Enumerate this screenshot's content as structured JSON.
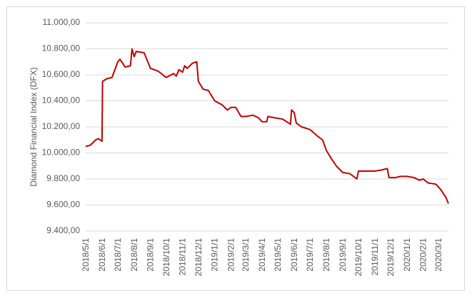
{
  "chart_data": {
    "type": "line",
    "y_label": "Diamond Financial Index (DFX)",
    "x": [
      "2018/5/1",
      "2018/5/10",
      "2018/5/20",
      "2018/5/25",
      "2018/6/1",
      "2018/6/2",
      "2018/6/10",
      "2018/6/20",
      "2018/7/1",
      "2018/7/5",
      "2018/7/15",
      "2018/7/25",
      "2018/7/28",
      "2018/8/1",
      "2018/8/5",
      "2018/8/20",
      "2018/8/25",
      "2018/9/1",
      "2018/9/15",
      "2018/10/1",
      "2018/10/15",
      "2018/10/20",
      "2018/10/25",
      "2018/11/1",
      "2018/11/5",
      "2018/11/10",
      "2018/11/20",
      "2018/11/28",
      "2018/12/1",
      "2018/12/10",
      "2018/12/20",
      "2019/1/1",
      "2019/1/15",
      "2019/1/25",
      "2019/2/1",
      "2019/2/10",
      "2019/2/20",
      "2019/3/1",
      "2019/3/15",
      "2019/3/25",
      "2019/4/1",
      "2019/4/10",
      "2019/4/12",
      "2019/4/25",
      "2019/5/10",
      "2019/5/25",
      "2019/5/27",
      "2019/6/1",
      "2019/6/5",
      "2019/6/15",
      "2019/7/1",
      "2019/7/15",
      "2019/7/25",
      "2019/8/1",
      "2019/8/10",
      "2019/8/20",
      "2019/9/1",
      "2019/9/15",
      "2019/9/28",
      "2019/10/1",
      "2019/10/15",
      "2019/11/1",
      "2019/11/15",
      "2019/11/25",
      "2019/11/28",
      "2019/12/10",
      "2019/12/20",
      "2020/1/1",
      "2020/1/15",
      "2020/1/25",
      "2020/2/1",
      "2020/2/10",
      "2020/2/25",
      "2020/3/5",
      "2020/3/15",
      "2020/3/20"
    ],
    "values": [
      10050,
      10060,
      10100,
      10110,
      10090,
      10550,
      10570,
      10580,
      10700,
      10720,
      10660,
      10670,
      10800,
      10740,
      10780,
      10770,
      10720,
      10650,
      10630,
      10580,
      10610,
      10590,
      10640,
      10620,
      10670,
      10650,
      10690,
      10700,
      10550,
      10490,
      10480,
      10400,
      10370,
      10330,
      10350,
      10350,
      10280,
      10280,
      10290,
      10270,
      10240,
      10240,
      10280,
      10270,
      10260,
      10220,
      10330,
      10310,
      10230,
      10200,
      10180,
      10130,
      10100,
      10020,
      9960,
      9900,
      9850,
      9840,
      9800,
      9860,
      9860,
      9860,
      9870,
      9880,
      9810,
      9810,
      9820,
      9820,
      9810,
      9790,
      9800,
      9770,
      9760,
      9720,
      9660,
      9610
    ],
    "color": "#c00000",
    "xlim": [
      "2018/5/1",
      "2020/3/20"
    ],
    "xticks": [
      "2018/5/1",
      "2018/6/1",
      "2018/7/1",
      "2018/8/1",
      "2018/9/1",
      "2018/10/1",
      "2018/11/1",
      "2018/12/1",
      "2019/1/1",
      "2019/2/1",
      "2019/3/1",
      "2019/4/1",
      "2019/5/1",
      "2019/6/1",
      "2019/7/1",
      "2019/8/1",
      "2019/9/1",
      "2019/10/1",
      "2019/11/1",
      "2019/12/1",
      "2020/1/1",
      "2020/2/1",
      "2020/3/1"
    ],
    "ylim": [
      9400,
      11000
    ],
    "yticks": [
      {
        "value": 9400,
        "label": "9.400,00"
      },
      {
        "value": 9600,
        "label": "9.600,00"
      },
      {
        "value": 9800,
        "label": "9.800,00"
      },
      {
        "value": 10000,
        "label": "10.000,00"
      },
      {
        "value": 10200,
        "label": "10.200,00"
      },
      {
        "value": 10400,
        "label": "10.400,00"
      },
      {
        "value": 10600,
        "label": "10.600,00"
      },
      {
        "value": 10800,
        "label": "10.800,00"
      },
      {
        "value": 11000,
        "label": "11.000,00"
      }
    ],
    "grid": true
  }
}
